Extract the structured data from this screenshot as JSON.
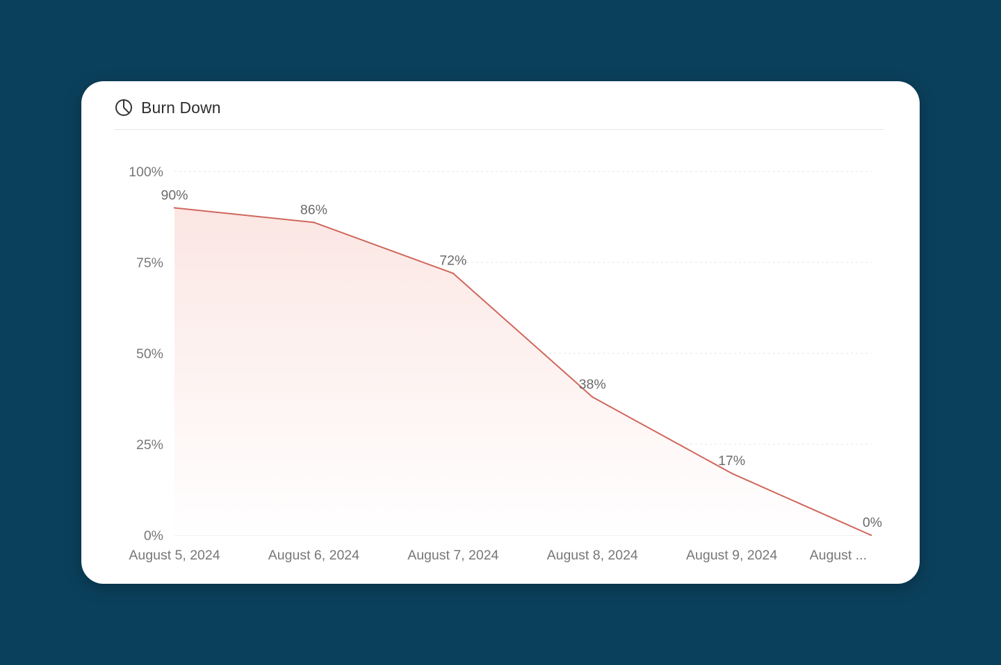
{
  "header": {
    "title": "Burn Down",
    "icon": "pie-chart-icon"
  },
  "chart_data": {
    "type": "area",
    "title": "Burn Down",
    "xlabel": "",
    "ylabel": "",
    "categories": [
      "August 5, 2024",
      "August 6, 2024",
      "August 7, 2024",
      "August 8, 2024",
      "August 9, 2024",
      "August ..."
    ],
    "values": [
      90,
      86,
      72,
      38,
      17,
      0
    ],
    "data_labels": [
      "90%",
      "86%",
      "72%",
      "38%",
      "17%",
      "0%"
    ],
    "y_ticks": [
      0,
      25,
      50,
      75,
      100
    ],
    "y_tick_labels": [
      "0%",
      "25%",
      "50%",
      "75%",
      "100%"
    ],
    "ylim": [
      0,
      100
    ],
    "grid": true,
    "legend": "none",
    "colors": {
      "line": "#d0665c",
      "fill": "#fbe9e7",
      "grid": "#e3e3e3"
    }
  }
}
